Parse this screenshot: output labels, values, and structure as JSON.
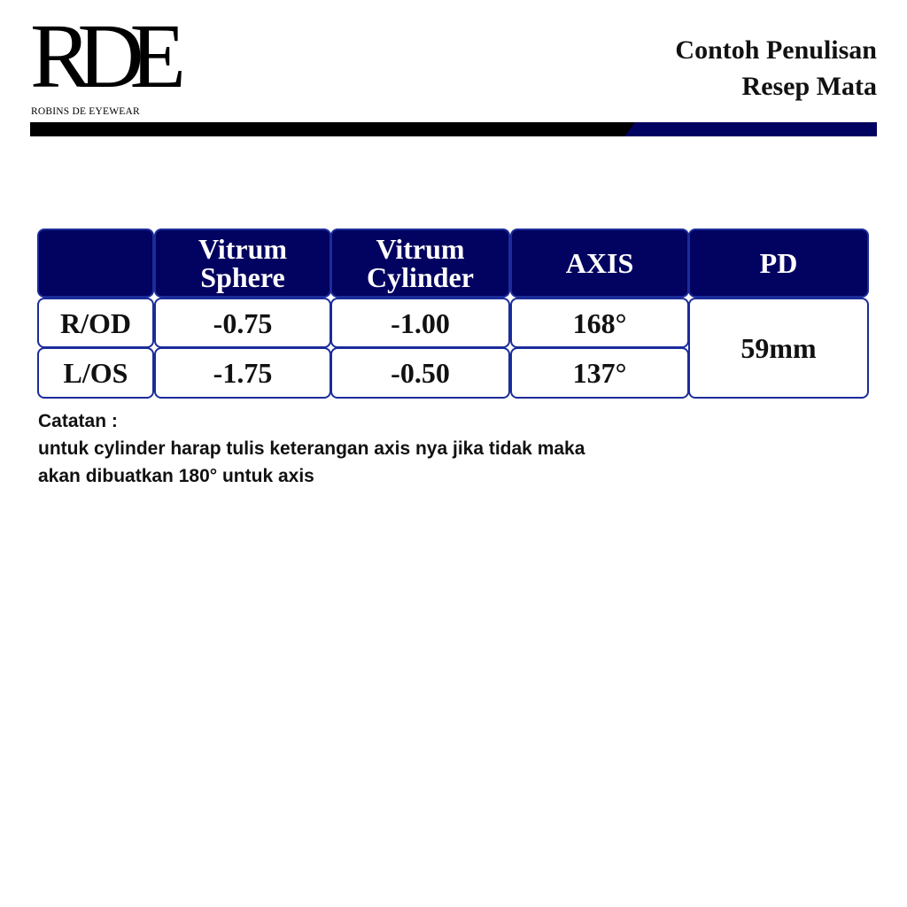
{
  "logo": {
    "mark": "RDE",
    "brand": "ROBINS DE EYEWEAR"
  },
  "header": {
    "title_line1": "Contoh Penulisan",
    "title_line2": "Resep Mata"
  },
  "colors": {
    "navy": "#020260",
    "border": "#1b2c9a"
  },
  "table": {
    "headers": [
      "",
      "Vitrum Sphere",
      "Vitrum Cylinder",
      "AXIS",
      "PD"
    ],
    "rows": [
      {
        "label": "R/OD",
        "sphere": "-0.75",
        "cylinder": "-1.00",
        "axis": "168°"
      },
      {
        "label": "L/OS",
        "sphere": "-1.75",
        "cylinder": "-0.50",
        "axis": "137°"
      }
    ],
    "pd": "59mm"
  },
  "note": {
    "heading": "Catatan :",
    "line1": "untuk cylinder harap tulis keterangan axis nya jika tidak maka",
    "line2": "akan dibuatkan 180° untuk axis"
  }
}
